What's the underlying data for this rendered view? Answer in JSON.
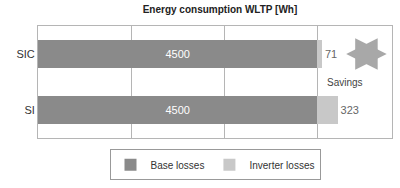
{
  "chart_data": {
    "type": "bar",
    "orientation": "horizontal",
    "stacked": true,
    "title": "Energy consumption WLTP [Wh]",
    "categories": [
      "SIC",
      "SI"
    ],
    "series": [
      {
        "name": "Base losses",
        "color": "#8a8a8a",
        "values": [
          4500,
          4500
        ]
      },
      {
        "name": "Inverter losses",
        "color": "#c8c8c8",
        "values": [
          71,
          323
        ]
      }
    ],
    "xlim": [
      0,
      5700
    ],
    "xticks": [
      0,
      1500,
      3000,
      4500
    ],
    "grid": true,
    "data_labels": true,
    "tick_labels": "y",
    "legend": "bottom",
    "annotations": [
      "Savings"
    ]
  }
}
